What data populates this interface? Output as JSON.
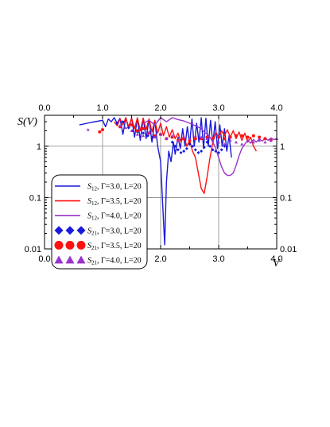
{
  "chart_data": {
    "type": "line",
    "xlabel": "V",
    "ylabel": "S(V)",
    "xlim": [
      0.0,
      4.0
    ],
    "ylim": [
      0.01,
      4.0
    ],
    "yscale": "log",
    "x_ticks": [
      "0.0",
      "1.0",
      "2.0",
      "3.0",
      "4.0"
    ],
    "y_ticks": [
      {
        "value": 1,
        "label": "1"
      },
      {
        "value": 0.1,
        "label": "0.1"
      },
      {
        "value": 0.01,
        "label": "0.01"
      }
    ],
    "grid": true,
    "legend_position": "lower-left",
    "series": [
      {
        "legend": {
          "s": "S",
          "sub": "12",
          "text": ", Γ=3.0, L=20"
        },
        "kind": "line",
        "color": "#1a1adc",
        "points": [
          [
            0.6,
            2.6
          ],
          [
            0.8,
            2.9
          ],
          [
            1.0,
            3.2
          ],
          [
            1.05,
            2.4
          ],
          [
            1.1,
            3.4
          ],
          [
            1.15,
            3.0
          ],
          [
            1.2,
            3.6
          ],
          [
            1.25,
            2.8
          ],
          [
            1.3,
            3.5
          ],
          [
            1.35,
            1.7
          ],
          [
            1.4,
            3.6
          ],
          [
            1.45,
            2.2
          ],
          [
            1.5,
            3.6
          ],
          [
            1.55,
            1.5
          ],
          [
            1.6,
            3.5
          ],
          [
            1.65,
            1.3
          ],
          [
            1.7,
            3.5
          ],
          [
            1.75,
            1.4
          ],
          [
            1.8,
            3.4
          ],
          [
            1.85,
            1.2
          ],
          [
            1.9,
            3.2
          ],
          [
            1.95,
            1.0
          ],
          [
            2.0,
            0.5
          ],
          [
            2.04,
            0.06
          ],
          [
            2.07,
            0.012
          ],
          [
            2.1,
            0.2
          ],
          [
            2.14,
            0.8
          ],
          [
            2.18,
            0.5
          ],
          [
            2.22,
            1.2
          ],
          [
            2.25,
            0.7
          ],
          [
            2.3,
            1.5
          ],
          [
            2.34,
            0.9
          ],
          [
            2.38,
            2.2
          ],
          [
            2.42,
            1.0
          ],
          [
            2.46,
            2.4
          ],
          [
            2.5,
            1.1
          ],
          [
            2.54,
            3.4
          ],
          [
            2.58,
            1.0
          ],
          [
            2.62,
            2.8
          ],
          [
            2.66,
            1.2
          ],
          [
            2.7,
            3.6
          ],
          [
            2.74,
            0.9
          ],
          [
            2.78,
            3.5
          ],
          [
            2.82,
            1.0
          ],
          [
            2.86,
            3.2
          ],
          [
            2.9,
            1.1
          ],
          [
            2.94,
            3.0
          ],
          [
            2.98,
            0.9
          ],
          [
            3.02,
            2.6
          ],
          [
            3.06,
            1.0
          ],
          [
            3.1,
            2.2
          ],
          [
            3.14,
            0.8
          ],
          [
            3.18,
            1.6
          ],
          [
            3.22,
            0.6
          ]
        ]
      },
      {
        "legend": {
          "s": "S",
          "sub": "12",
          "text": ", Γ=3.5, L=20"
        },
        "kind": "line",
        "color": "#ff1010",
        "points": [
          [
            1.2,
            3.0
          ],
          [
            1.25,
            2.5
          ],
          [
            1.3,
            3.4
          ],
          [
            1.35,
            2.6
          ],
          [
            1.4,
            3.6
          ],
          [
            1.45,
            2.4
          ],
          [
            1.5,
            3.5
          ],
          [
            1.55,
            2.2
          ],
          [
            1.6,
            3.6
          ],
          [
            1.65,
            2.0
          ],
          [
            1.7,
            3.5
          ],
          [
            1.75,
            2.1
          ],
          [
            1.8,
            3.4
          ],
          [
            1.85,
            1.9
          ],
          [
            1.9,
            3.2
          ],
          [
            1.95,
            1.8
          ],
          [
            2.0,
            2.8
          ],
          [
            2.05,
            1.6
          ],
          [
            2.1,
            2.4
          ],
          [
            2.15,
            1.5
          ],
          [
            2.2,
            2.1
          ],
          [
            2.25,
            1.4
          ],
          [
            2.3,
            1.8
          ],
          [
            2.35,
            1.2
          ],
          [
            2.4,
            1.6
          ],
          [
            2.45,
            1.0
          ],
          [
            2.5,
            1.3
          ],
          [
            2.55,
            0.8
          ],
          [
            2.6,
            0.6
          ],
          [
            2.65,
            0.3
          ],
          [
            2.7,
            0.15
          ],
          [
            2.75,
            0.12
          ],
          [
            2.8,
            0.25
          ],
          [
            2.85,
            0.6
          ],
          [
            2.9,
            1.2
          ],
          [
            2.95,
            1.9
          ],
          [
            3.0,
            1.5
          ],
          [
            3.05,
            2.0
          ],
          [
            3.1,
            1.6
          ],
          [
            3.15,
            2.1
          ],
          [
            3.2,
            1.5
          ],
          [
            3.25,
            2.0
          ],
          [
            3.3,
            1.4
          ],
          [
            3.35,
            1.9
          ],
          [
            3.4,
            1.3
          ],
          [
            3.45,
            1.8
          ],
          [
            3.5,
            1.2
          ],
          [
            3.55,
            1.5
          ],
          [
            3.6,
            1.0
          ],
          [
            3.65,
            0.8
          ]
        ]
      },
      {
        "legend": {
          "s": "S",
          "sub": "12",
          "text": ", Γ=4.0, L=20"
        },
        "kind": "line",
        "color": "#9933cc",
        "points": [
          [
            1.7,
            2.8
          ],
          [
            1.8,
            3.2
          ],
          [
            1.9,
            2.6
          ],
          [
            2.0,
            3.6
          ],
          [
            2.1,
            3.0
          ],
          [
            2.2,
            3.6
          ],
          [
            2.3,
            3.3
          ],
          [
            2.4,
            3.1
          ],
          [
            2.5,
            2.8
          ],
          [
            2.6,
            2.5
          ],
          [
            2.7,
            2.2
          ],
          [
            2.75,
            1.9
          ],
          [
            2.8,
            1.7
          ],
          [
            2.85,
            1.5
          ],
          [
            2.9,
            1.2
          ],
          [
            2.95,
            0.9
          ],
          [
            3.0,
            0.6
          ],
          [
            3.05,
            0.4
          ],
          [
            3.1,
            0.3
          ],
          [
            3.15,
            0.27
          ],
          [
            3.2,
            0.27
          ],
          [
            3.25,
            0.3
          ],
          [
            3.3,
            0.42
          ],
          [
            3.35,
            0.65
          ],
          [
            3.4,
            0.9
          ],
          [
            3.45,
            1.1
          ],
          [
            3.5,
            1.3
          ],
          [
            3.55,
            1.15
          ],
          [
            3.6,
            1.35
          ],
          [
            3.65,
            1.2
          ],
          [
            3.7,
            1.4
          ],
          [
            3.75,
            1.25
          ],
          [
            3.8,
            1.45
          ],
          [
            3.85,
            1.3
          ],
          [
            3.9,
            1.45
          ],
          [
            3.95,
            1.35
          ],
          [
            4.0,
            1.4
          ]
        ]
      },
      {
        "legend": {
          "s": "S",
          "sub": "21",
          "text": ", Γ=3.0, L=20"
        },
        "kind": "diamond",
        "color": "#1a1adc",
        "points": [
          [
            1.25,
            2.8
          ],
          [
            1.35,
            3.0
          ],
          [
            1.45,
            2.3
          ],
          [
            1.52,
            2.0
          ],
          [
            1.6,
            1.9
          ],
          [
            1.7,
            1.8
          ],
          [
            1.78,
            1.6
          ],
          [
            1.86,
            1.5
          ],
          [
            2.2,
            1.2
          ],
          [
            2.25,
            1.0
          ],
          [
            2.3,
            0.85
          ],
          [
            2.35,
            0.75
          ],
          [
            2.4,
            0.8
          ],
          [
            2.45,
            0.9
          ],
          [
            2.5,
            1.1
          ],
          [
            2.55,
            1.0
          ],
          [
            2.6,
            0.85
          ],
          [
            2.65,
            0.75
          ],
          [
            2.7,
            0.8
          ],
          [
            2.75,
            0.95
          ],
          [
            2.8,
            1.2
          ],
          [
            2.85,
            1.0
          ],
          [
            2.9,
            0.85
          ],
          [
            2.95,
            0.8
          ],
          [
            3.0,
            0.75
          ],
          [
            3.05,
            0.85
          ],
          [
            3.1,
            1.0
          ]
        ]
      },
      {
        "legend": {
          "s": "S",
          "sub": "21",
          "text": ", Γ=3.5, L=20"
        },
        "kind": "circle",
        "color": "#ff1010",
        "points": [
          [
            0.95,
            1.9
          ],
          [
            1.0,
            2.1
          ],
          [
            1.3,
            2.4
          ],
          [
            1.5,
            2.6
          ],
          [
            1.6,
            2.0
          ],
          [
            1.7,
            2.2
          ],
          [
            1.8,
            1.8
          ],
          [
            1.9,
            1.6
          ],
          [
            2.0,
            1.7
          ],
          [
            2.1,
            1.4
          ],
          [
            2.2,
            1.5
          ],
          [
            2.3,
            1.3
          ],
          [
            2.4,
            1.4
          ],
          [
            2.5,
            1.3
          ],
          [
            2.6,
            1.4
          ],
          [
            2.7,
            1.4
          ],
          [
            2.8,
            1.5
          ],
          [
            2.9,
            1.4
          ],
          [
            3.0,
            1.5
          ],
          [
            3.1,
            1.4
          ],
          [
            3.2,
            1.5
          ],
          [
            3.3,
            1.6
          ],
          [
            3.4,
            1.6
          ],
          [
            3.5,
            1.5
          ],
          [
            3.6,
            1.6
          ],
          [
            3.7,
            1.5
          ],
          [
            3.8,
            1.4
          ],
          [
            3.9,
            1.3
          ]
        ]
      },
      {
        "legend": {
          "s": "S",
          "sub": "21",
          "text": ", Γ=4.0, L=20"
        },
        "kind": "triangle",
        "color": "#9933cc",
        "points": [
          [
            0.75,
            2.1
          ],
          [
            1.3,
            2.5
          ],
          [
            1.4,
            2.3
          ],
          [
            1.5,
            2.0
          ],
          [
            1.6,
            1.7
          ],
          [
            1.7,
            1.6
          ],
          [
            1.8,
            1.9
          ],
          [
            1.9,
            1.5
          ],
          [
            2.0,
            1.7
          ],
          [
            2.1,
            1.4
          ],
          [
            2.2,
            1.6
          ],
          [
            2.3,
            1.3
          ],
          [
            2.4,
            1.5
          ],
          [
            2.5,
            1.4
          ],
          [
            2.6,
            1.6
          ],
          [
            2.7,
            1.5
          ],
          [
            2.8,
            1.4
          ],
          [
            2.9,
            1.3
          ],
          [
            3.0,
            1.2
          ],
          [
            3.1,
            1.1
          ],
          [
            3.2,
            1.3
          ],
          [
            3.3,
            1.2
          ],
          [
            3.4,
            1.1
          ],
          [
            3.5,
            1.3
          ],
          [
            3.6,
            1.2
          ],
          [
            3.7,
            1.3
          ],
          [
            3.8,
            1.2
          ],
          [
            3.9,
            1.3
          ],
          [
            4.0,
            1.4
          ]
        ]
      }
    ]
  }
}
